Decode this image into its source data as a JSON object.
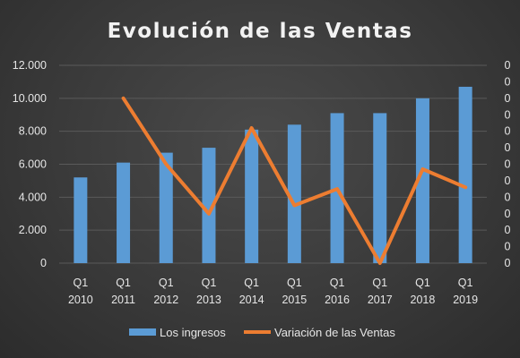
{
  "chart_data": {
    "type": "bar",
    "title": "Evolución de las Ventas",
    "categories": [
      [
        "Q1",
        "2010"
      ],
      [
        "Q1",
        "2011"
      ],
      [
        "Q1",
        "2012"
      ],
      [
        "Q1",
        "2013"
      ],
      [
        "Q1",
        "2014"
      ],
      [
        "Q1",
        "2015"
      ],
      [
        "Q1",
        "2016"
      ],
      [
        "Q1",
        "2017"
      ],
      [
        "Q1",
        "2018"
      ],
      [
        "Q1",
        "2019"
      ]
    ],
    "series": [
      {
        "name": "Los ingresos",
        "type": "bar",
        "axis": "left",
        "color": "#5b9bd5",
        "values": [
          5200,
          6100,
          6700,
          7000,
          8100,
          8400,
          9100,
          9100,
          10000,
          10700
        ]
      },
      {
        "name": "Variación de las Ventas",
        "type": "line",
        "axis": "right",
        "color": "#ed7d31",
        "values": [
          null,
          0.95,
          0.55,
          0.25,
          0.77,
          0.3,
          0.4,
          -0.05,
          0.52,
          0.41
        ]
      }
    ],
    "y_left": {
      "ylim": [
        0,
        12000
      ],
      "tick_labels": [
        "0",
        "2.000",
        "4.000",
        "6.000",
        "8.000",
        "10.000",
        "12.000"
      ]
    },
    "y_right": {
      "ylim": [
        -0.05,
        1.15
      ],
      "tick_labels": [
        "0",
        "0",
        "0",
        "0",
        "0",
        "0",
        "0",
        "0",
        "0",
        "0",
        "0",
        "0",
        "0"
      ]
    },
    "grid": true,
    "legend": "bottom"
  }
}
